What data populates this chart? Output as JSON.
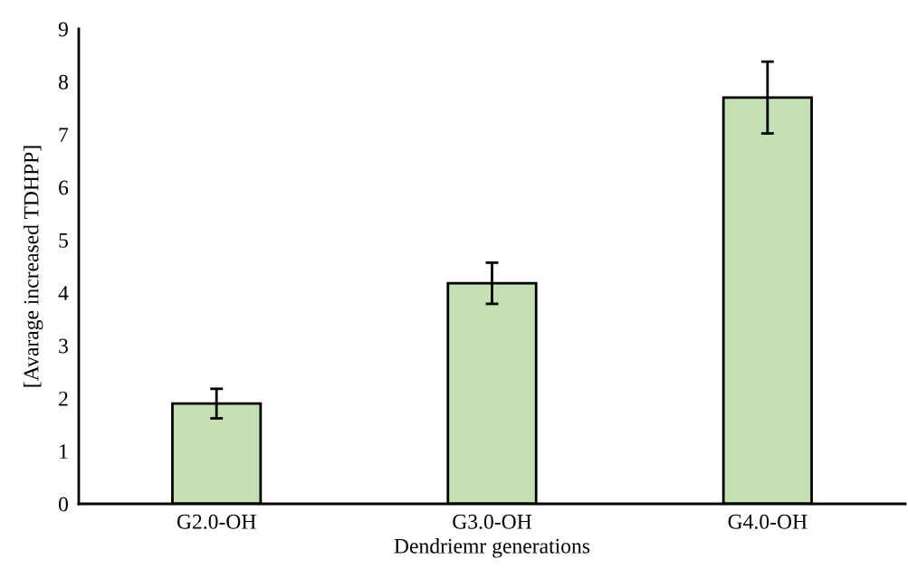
{
  "chart_data": {
    "type": "bar",
    "xlabel": "Dendriemr generations",
    "ylabel": "[Avarage increased TDHPP]",
    "categories": [
      "G2.0-OH",
      "G3.0-OH",
      "G4.0-OH"
    ],
    "values": [
      1.9,
      4.18,
      7.7
    ],
    "errors": [
      0.28,
      0.39,
      0.68
    ],
    "color": "#c5e0b4",
    "ylim": [
      0,
      9
    ],
    "yticks": [
      0,
      1,
      2,
      3,
      4,
      5,
      6,
      7,
      8,
      9
    ],
    "grid": false,
    "legend": false
  }
}
